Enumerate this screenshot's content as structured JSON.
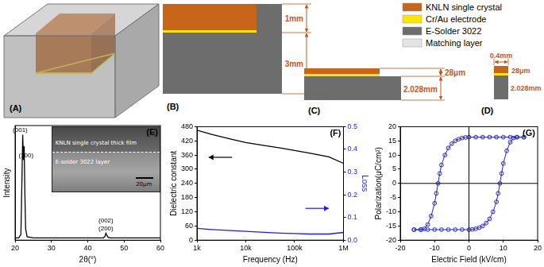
{
  "diagram": {
    "legend": [
      {
        "label": "KNLN single crystal",
        "color": "#c8651b"
      },
      {
        "label": "Cr/Au electrode",
        "color": "#ffe600"
      },
      {
        "label": "E-Solder 3022",
        "color": "#6d6d6d"
      },
      {
        "label": "Matching layer",
        "color": "#e4e4e4"
      }
    ],
    "panels": [
      {
        "label": "(A)"
      },
      {
        "label": "(B)",
        "dimensions": [
          "1mm",
          "3mm"
        ]
      },
      {
        "label": "(C)",
        "dimensions": [
          "28μm",
          "2.028mm"
        ]
      },
      {
        "label": "(D)",
        "dimensions": [
          "0.4mm",
          "28μm",
          "2.028mm"
        ]
      }
    ]
  },
  "chart_data": [
    {
      "panel_label": "(E)",
      "type": "line",
      "x": [
        20,
        21.0,
        21.6,
        21.9,
        22.1,
        22.3,
        22.5,
        22.7,
        22.9,
        23.3,
        25,
        35,
        44.3,
        44.7,
        45.0,
        45.3,
        45.6,
        46.2,
        55,
        60
      ],
      "values": [
        0.02,
        0.02,
        0.05,
        0.55,
        0.92,
        0.7,
        0.82,
        0.4,
        0.1,
        0.03,
        0.02,
        0.02,
        0.02,
        0.03,
        0.06,
        0.04,
        0.025,
        0.02,
        0.02,
        0.02
      ],
      "color": "#000000",
      "x_label": "2θ(°)",
      "y_label": "Intensity",
      "xlim": [
        20,
        60
      ],
      "xticks": [
        20,
        30,
        40,
        50,
        60
      ],
      "ylim": [
        0,
        1
      ],
      "tick_labels": "x",
      "grid": false,
      "annotations": [
        {
          "text": "(001)",
          "x": 21.4,
          "y": 0.96
        },
        {
          "text": "(100)",
          "x": 23.0,
          "y": 0.74
        },
        {
          "text": "(002)",
          "x": 45.0,
          "y": 0.17
        },
        {
          "text": "(200)",
          "x": 45.0,
          "y": 0.1
        }
      ],
      "inset": {
        "texts": [
          "KNLN single crystal thick film",
          "E-solder 3022 layer"
        ],
        "scale_bar": "20μm"
      }
    },
    {
      "panel_label": "(F)",
      "type": "line",
      "log": "x",
      "x": [
        1000,
        2000,
        5000,
        10000,
        20000,
        50000,
        100000,
        200000,
        500000,
        1000000
      ],
      "series": [
        {
          "color": "#000000",
          "values": [
            465,
            447,
            427,
            413,
            403,
            390,
            379,
            368,
            352,
            325
          ]
        },
        {
          "color": "#1a1aff",
          "axis": "y2",
          "values": [
            0.052,
            0.047,
            0.042,
            0.039,
            0.035,
            0.031,
            0.029,
            0.027,
            0.027,
            0.034
          ]
        }
      ],
      "x_label": "Frequency (Hz)",
      "y_label": "Dielectric constant",
      "y2_label": "Loss",
      "xlim": [
        1000,
        1000000
      ],
      "xticks": [
        {
          "value": 1000,
          "label": "1k"
        },
        {
          "value": 10000,
          "label": "10k"
        },
        {
          "value": 100000,
          "label": "100k"
        },
        {
          "value": 1000000,
          "label": "1M"
        }
      ],
      "ylim": [
        0,
        480
      ],
      "yticks": [
        0,
        60,
        120,
        180,
        240,
        300,
        360,
        420,
        480
      ],
      "y2lim": [
        0,
        0.5
      ],
      "y2ticks": [
        {
          "value": 0,
          "label": "0.0"
        },
        0.1,
        0.2,
        0.3,
        0.4,
        0.5
      ],
      "grid": false
    },
    {
      "panel_label": "(G)",
      "type": "scatter",
      "marker": "circle",
      "line_style": "solid",
      "color": "#2323d9",
      "x": [
        16,
        14,
        12,
        10,
        8,
        6,
        4,
        2,
        0,
        -1,
        -2,
        -3,
        -4,
        -5,
        -6,
        -7,
        -8,
        -8.5,
        -9,
        -9.5,
        -10,
        -11,
        -12,
        -13,
        -14,
        -16,
        -16,
        -14,
        -12,
        -10,
        -8,
        -6,
        -4,
        -2,
        0,
        1,
        2,
        3,
        4,
        5,
        6,
        7,
        8,
        8.5,
        9,
        9.5,
        10,
        11,
        12,
        13,
        14,
        16
      ],
      "values": [
        16.3,
        16.3,
        16.3,
        16.3,
        16.3,
        16.3,
        16.3,
        16.3,
        16.3,
        16.2,
        16.0,
        15.6,
        15.0,
        14.0,
        12.5,
        10,
        6.5,
        3.5,
        0,
        -3.5,
        -7,
        -11.5,
        -14.5,
        -16,
        -16.3,
        -16.3,
        -16.3,
        -16.3,
        -16.3,
        -16.3,
        -16.3,
        -16.3,
        -16.3,
        -16.3,
        -16.3,
        -16.2,
        -16.0,
        -15.6,
        -15.0,
        -14.0,
        -12.5,
        -10,
        -6.5,
        -3.5,
        0,
        3.5,
        7,
        11.5,
        14.5,
        16,
        16.3,
        16.3
      ],
      "x_label": "Electric Field (kV/cm)",
      "y_label": "Polarization(μC/cm²)",
      "xlim": [
        -20,
        20
      ],
      "xticks": [
        -20,
        -10,
        0,
        10,
        20
      ],
      "ylim": [
        -20,
        20
      ],
      "yticks": [
        -20,
        -15,
        -10,
        -5,
        0,
        5,
        10,
        15,
        20
      ],
      "grid": false
    }
  ]
}
